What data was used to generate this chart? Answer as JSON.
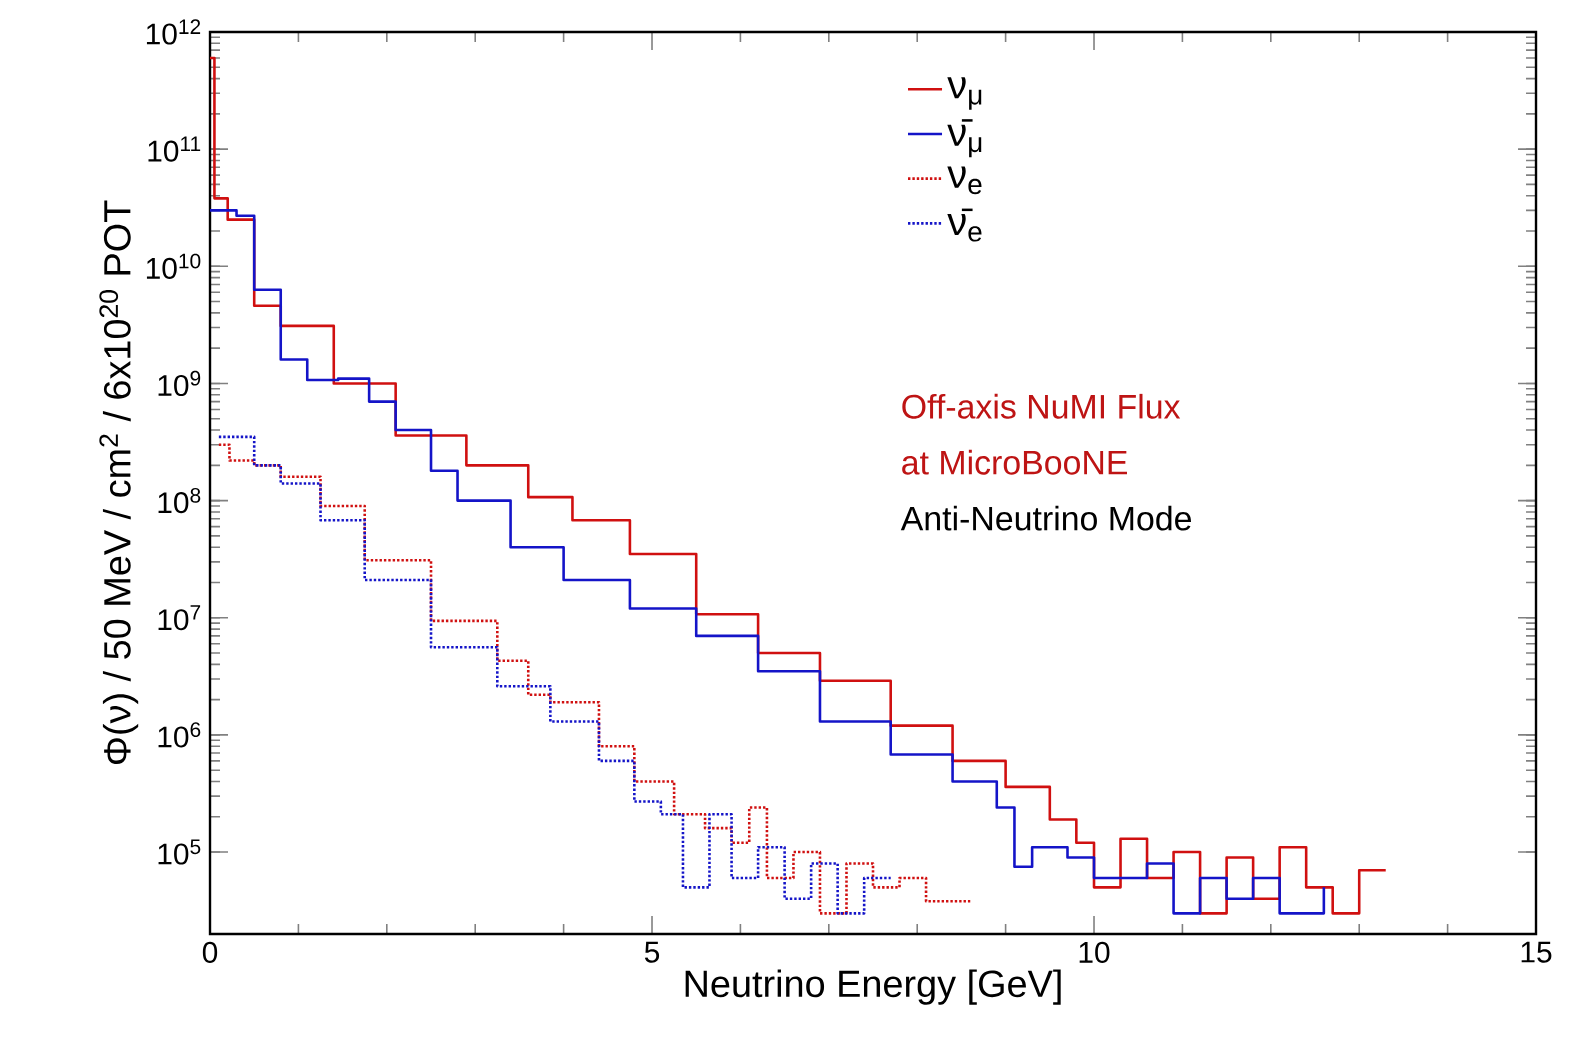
{
  "chart_data": {
    "type": "step",
    "xlabel": "Neutrino Energy [GeV]",
    "ylabel": "Φ(ν) / 50 MeV / cm$^{2}$ / 6x10$^{20}$ POT",
    "log": "y",
    "xlim": [
      0,
      15
    ],
    "ylim": [
      20000,
      1000000000000
    ],
    "xticks": [
      0,
      5,
      10,
      15
    ],
    "yticks": [
      {
        "value": 100000,
        "label": "10$^{5}$"
      },
      {
        "value": 1000000,
        "label": "10$^{6}$"
      },
      {
        "value": 10000000,
        "label": "10$^{7}$"
      },
      {
        "value": 100000000,
        "label": "10$^{8}$"
      },
      {
        "value": 1000000000,
        "label": "10$^{9}$"
      },
      {
        "value": 10000000000,
        "label": "10$^{10}$"
      },
      {
        "value": 100000000000,
        "label": "10$^{11}$"
      },
      {
        "value": 1000000000000,
        "label": "10$^{12}$"
      }
    ],
    "legend": "top right",
    "series": [
      {
        "name": "ν$_{μ}$",
        "color": "#d01010",
        "line_style": "solid",
        "x": [
          0,
          0.05,
          0.2,
          0.5,
          0.8,
          1.4,
          2.1,
          2.9,
          3.6,
          4.1,
          4.75,
          5.5,
          6.2,
          6.9,
          7.7,
          8.4,
          9.0,
          9.5,
          9.8,
          10.0,
          10.3,
          10.6,
          10.9,
          11.2,
          11.5,
          11.8,
          12.1,
          12.4,
          12.7,
          13.0,
          13.3
        ],
        "values": [
          600000000000.0,
          38000000000.0,
          25000000000.0,
          4600000000.0,
          3100000000.0,
          1000000000.0,
          360000000.0,
          200000000.0,
          107000000.0,
          68000000.0,
          35000000.0,
          10700000.0,
          5000000.0,
          2900000.0,
          1200000.0,
          600000.0,
          360000.0,
          190000.0,
          120000.0,
          50000.0,
          130000.0,
          60000.0,
          100000.0,
          30000.0,
          90000.0,
          40000.0,
          110000.0,
          50000.0,
          30000.0,
          70000.0,
          70000.0
        ]
      },
      {
        "name": "ν̄$_{μ}$",
        "color": "#1414c8",
        "line_style": "solid",
        "x": [
          0,
          0.3,
          0.5,
          0.8,
          1.1,
          1.45,
          1.8,
          2.1,
          2.5,
          2.8,
          3.4,
          4.0,
          4.75,
          5.5,
          6.2,
          6.9,
          7.7,
          8.4,
          8.9,
          9.1,
          9.3,
          9.5,
          9.7,
          10.0,
          10.3,
          10.6,
          10.9,
          11.2,
          11.5,
          11.8,
          12.1,
          12.6
        ],
        "values": [
          30000000000.0,
          27000000000.0,
          6300000000.0,
          1600000000.0,
          1070000000.0,
          1100000000.0,
          700000000.0,
          400000000.0,
          180000000.0,
          100000000.0,
          40000000.0,
          21000000.0,
          12000000.0,
          7000000.0,
          3500000.0,
          1300000.0,
          680000.0,
          400000.0,
          240000.0,
          75000.0,
          110000.0,
          null,
          90000.0,
          60000.0,
          null,
          80000.0,
          30000.0,
          60000.0,
          40000.0,
          60000.0,
          30000.0,
          50000.0
        ]
      },
      {
        "name": "ν$_{e}$",
        "color": "#d01010",
        "line_style": "dotted",
        "x": [
          0.1,
          0.22,
          0.5,
          0.8,
          1.25,
          1.75,
          2.5,
          3.25,
          3.6,
          3.85,
          4.4,
          4.8,
          5.25,
          5.6,
          5.9,
          6.1,
          6.3,
          6.6,
          6.9,
          7.2,
          7.5,
          7.8,
          8.1,
          8.6
        ],
        "values": [
          300000000.0,
          220000000.0,
          200000000.0,
          160000000.0,
          90000000.0,
          31000000.0,
          9400000.0,
          4300000.0,
          2200000.0,
          1900000.0,
          800000.0,
          400000.0,
          210000.0,
          160000.0,
          120000.0,
          240000.0,
          60000.0,
          100000.0,
          30000.0,
          80000.0,
          50000.0,
          60000.0,
          38000.0,
          38000.0
        ]
      },
      {
        "name": "ν̄$_{e}$",
        "color": "#1414c8",
        "line_style": "dotted",
        "x": [
          0.1,
          0.5,
          0.8,
          1.25,
          1.75,
          2.5,
          3.25,
          3.85,
          4.4,
          4.8,
          5.1,
          5.35,
          5.65,
          5.9,
          6.2,
          6.5,
          6.8,
          7.1,
          7.4,
          7.7
        ],
        "values": [
          350000000.0,
          200000000.0,
          140000000.0,
          68000000.0,
          21000000.0,
          5600000.0,
          2600000.0,
          1300000.0,
          600000.0,
          270000.0,
          210000.0,
          50000.0,
          210000.0,
          60000.0,
          110000.0,
          40000.0,
          80000.0,
          30000.0,
          60000.0,
          60000.0
        ]
      }
    ],
    "annotations": [
      "Off-axis NuMI Flux",
      "at MicroBooNE",
      "Anti-Neutrino Mode"
    ]
  }
}
